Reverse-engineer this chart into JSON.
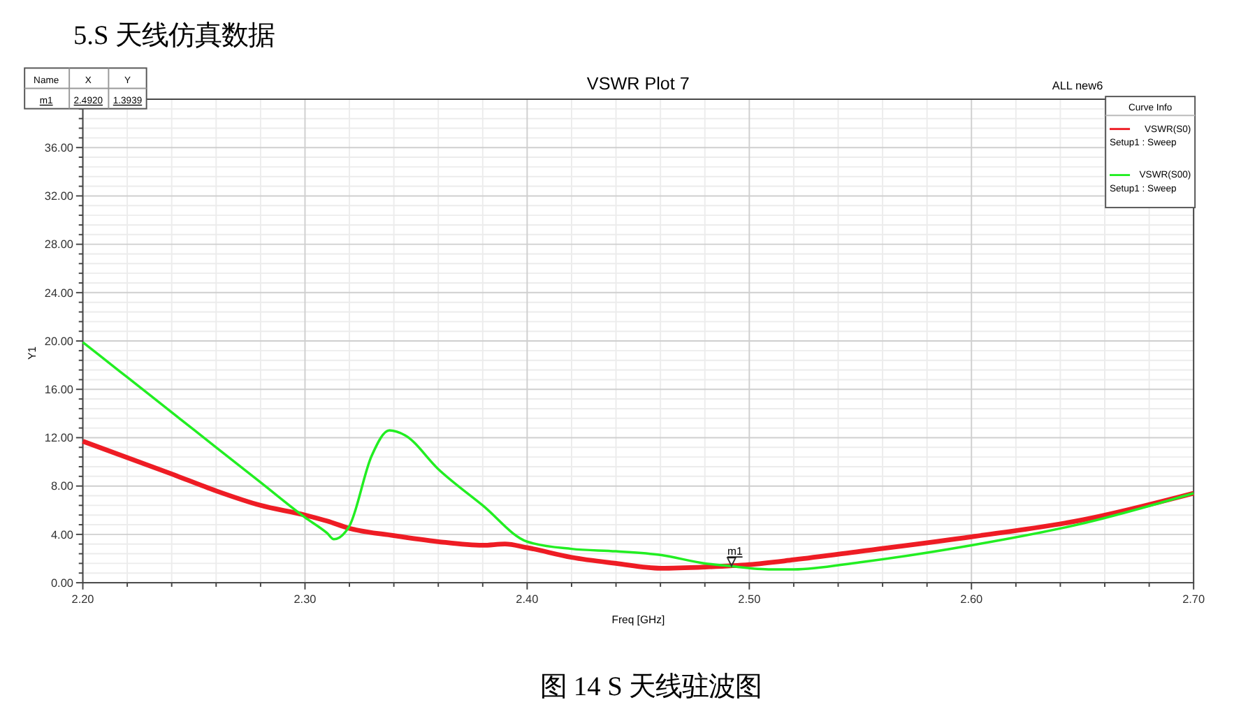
{
  "chart_data": {
    "type": "line",
    "title": "VSWR Plot 7",
    "xlabel": "Freq [GHz]",
    "ylabel": "Y1",
    "legend_title": "Curve Info",
    "annotations": [
      "5.S 天线仿真数据",
      "图 14 S 天线驻波图",
      "ALL new6",
      "Name",
      "X",
      "Y",
      "m1",
      "2.4920",
      "1.3939",
      "Setup1 : Sweep",
      "Setup1 : Sweep",
      {
        "text": "m1",
        "x": 2.492,
        "y": 1.3939
      }
    ],
    "xlim": [
      2.2,
      2.7
    ],
    "xticks": [
      {
        "value": 2.2,
        "label": "2.20"
      },
      {
        "value": 2.3,
        "label": "2.30"
      },
      {
        "value": 2.4,
        "label": "2.40"
      },
      {
        "value": 2.5,
        "label": "2.50"
      },
      {
        "value": 2.6,
        "label": "2.60"
      },
      {
        "value": 2.7,
        "label": "2.70"
      }
    ],
    "ylim": [
      0,
      40
    ],
    "yticks": [
      {
        "value": 0,
        "label": "0.00"
      },
      {
        "value": 4,
        "label": "4.00"
      },
      {
        "value": 8,
        "label": "8.00"
      },
      {
        "value": 12,
        "label": "12.00"
      },
      {
        "value": 16,
        "label": "16.00"
      },
      {
        "value": 20,
        "label": "20.00"
      },
      {
        "value": 24,
        "label": "24.00"
      },
      {
        "value": 28,
        "label": "28.00"
      },
      {
        "value": 32,
        "label": "32.00"
      },
      {
        "value": 36,
        "label": "36.00"
      }
    ],
    "grid": true,
    "legend": "top right",
    "marker": "none",
    "line_style": "solid",
    "series": [
      {
        "name": "VSWR(S0)",
        "color": "#ee1c24",
        "x": [
          2.2,
          2.24,
          2.26,
          2.28,
          2.3,
          2.31,
          2.32,
          2.34,
          2.36,
          2.38,
          2.39,
          2.4,
          2.42,
          2.44,
          2.46,
          2.48,
          2.5,
          2.52,
          2.55,
          2.6,
          2.65,
          2.7
        ],
        "values": [
          11.7,
          9.0,
          7.6,
          6.4,
          5.6,
          5.1,
          4.5,
          3.9,
          3.4,
          3.1,
          3.2,
          2.9,
          2.1,
          1.6,
          1.2,
          1.3,
          1.5,
          1.9,
          2.6,
          3.8,
          5.2,
          7.4
        ]
      },
      {
        "name": "VSWR(S00)",
        "color": "#22ee22",
        "x": [
          2.2,
          2.22,
          2.24,
          2.26,
          2.28,
          2.3,
          2.31,
          2.313,
          2.32,
          2.33,
          2.338,
          2.345,
          2.36,
          2.38,
          2.4,
          2.42,
          2.44,
          2.46,
          2.48,
          2.49,
          2.51,
          2.52,
          2.55,
          2.6,
          2.65,
          2.7
        ],
        "values": [
          19.9,
          17.0,
          14.1,
          11.2,
          8.3,
          5.4,
          4.1,
          3.6,
          4.7,
          10.5,
          12.6,
          12.2,
          9.4,
          6.4,
          3.4,
          2.8,
          2.6,
          2.3,
          1.6,
          1.4,
          1.1,
          1.1,
          1.7,
          3.1,
          4.9,
          7.4
        ]
      }
    ]
  }
}
